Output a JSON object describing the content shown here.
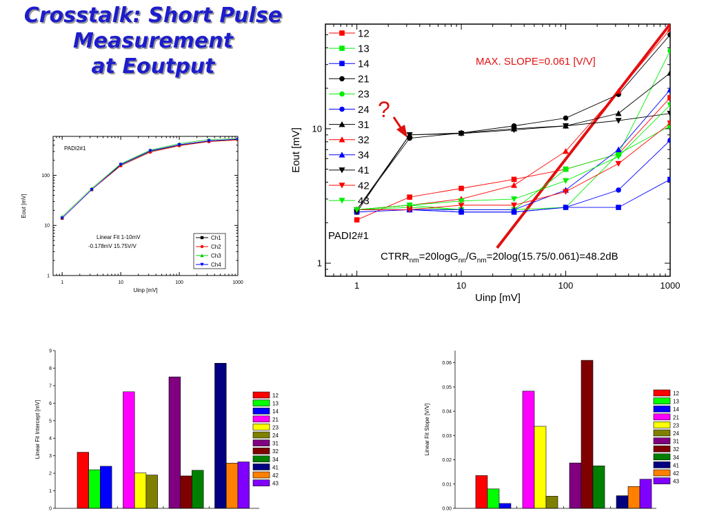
{
  "slide": {
    "title_lines": [
      "Crosstalk: Short Pulse",
      "Measurement",
      "at Eoutput"
    ]
  },
  "chart_data": [
    {
      "type": "line",
      "xscale": "log",
      "yscale": "log",
      "xlim": [
        0.7,
        1000
      ],
      "ylim": [
        1,
        600
      ],
      "xticks": [
        1,
        10,
        100,
        1000
      ],
      "xtick_labels": [
        "1",
        "10",
        "100",
        "1000"
      ],
      "yticks": [
        1,
        10,
        100
      ],
      "ytick_labels": [
        "1",
        "10",
        "100"
      ],
      "xlabel": "Uinp [mV]",
      "ylabel": "Eout [mV]",
      "annotations": [
        "PADI2#1",
        "Linear Fit 1-10mV",
        "-0.178mV  15.75V/V"
      ],
      "legend_position": "bottom-right",
      "x": [
        1,
        3.2,
        10,
        32,
        100,
        320,
        1000
      ],
      "series": [
        {
          "name": "Ch1",
          "color": "#000000",
          "marker": "square",
          "values": [
            14,
            52,
            160,
            300,
            400,
            480,
            520
          ]
        },
        {
          "name": "Ch2",
          "color": "#ff0000",
          "marker": "circle",
          "values": [
            14,
            52,
            155,
            290,
            390,
            470,
            510
          ]
        },
        {
          "name": "Ch3",
          "color": "#00cc00",
          "marker": "triangle-up",
          "values": [
            15,
            55,
            170,
            320,
            430,
            520,
            540
          ]
        },
        {
          "name": "Ch4",
          "color": "#0000ff",
          "marker": "triangle-down",
          "values": [
            14,
            52,
            165,
            310,
            410,
            490,
            530
          ]
        }
      ]
    },
    {
      "type": "line",
      "xscale": "log",
      "yscale": "log",
      "xlim": [
        0.5,
        1000
      ],
      "ylim": [
        0.8,
        60
      ],
      "xticks": [
        1,
        10,
        100,
        1000
      ],
      "xtick_labels": [
        "1",
        "10",
        "100",
        "1000"
      ],
      "yticks": [
        1,
        10
      ],
      "ytick_labels": [
        "1",
        "10"
      ],
      "xlabel": "Uinp [mV]",
      "ylabel": "Eout [mV]",
      "annotations": {
        "padi": "PADI2#1",
        "slope_label": "MAX. SLOPE=0.061 [V/V]",
        "question": "?",
        "ctrr": {
          "a": "CTRR",
          "b": "nm",
          "c": "=20logG",
          "d": "nn",
          "e": "/G",
          "f": "nm",
          "g": "=20log(15.75/0.061)=48.2dB"
        }
      },
      "max_slope_line": {
        "color": "#e01010",
        "x": [
          22,
          1000
        ],
        "y": [
          1.3,
          60
        ]
      },
      "legend_position": "top-left",
      "x": [
        1,
        3.2,
        10,
        32,
        100,
        320,
        1000
      ],
      "series": [
        {
          "name": "12",
          "color": "#ff0000",
          "marker": "square",
          "values": [
            2.1,
            3.1,
            3.6,
            4.2,
            5.0,
            6.5,
            17
          ]
        },
        {
          "name": "13",
          "color": "#00ee00",
          "marker": "square",
          "values": [
            2.5,
            2.6,
            2.5,
            2.5,
            5.0,
            6.5,
            10.5
          ]
        },
        {
          "name": "14",
          "color": "#0000ff",
          "marker": "square",
          "values": [
            2.4,
            2.5,
            2.4,
            2.4,
            2.6,
            2.6,
            4.2
          ]
        },
        {
          "name": "21",
          "color": "#000000",
          "marker": "circle",
          "values": [
            2.5,
            8.5,
            9.3,
            10.5,
            12,
            18,
            50
          ]
        },
        {
          "name": "23",
          "color": "#00ee00",
          "marker": "circle",
          "values": [
            2.5,
            2.7,
            2.5,
            2.5,
            2.6,
            6.5,
            38
          ]
        },
        {
          "name": "24",
          "color": "#0000ff",
          "marker": "circle",
          "values": [
            2.5,
            2.5,
            2.4,
            2.4,
            2.6,
            3.5,
            8.2
          ]
        },
        {
          "name": "31",
          "color": "#000000",
          "marker": "triangle-up",
          "values": [
            2.5,
            9.0,
            9.3,
            10.0,
            10.5,
            13,
            26
          ]
        },
        {
          "name": "32",
          "color": "#ff0000",
          "marker": "triangle-up",
          "values": [
            2.5,
            2.7,
            3.0,
            3.8,
            6.8,
            19,
            55
          ]
        },
        {
          "name": "34",
          "color": "#0000ff",
          "marker": "triangle-up",
          "values": [
            2.5,
            2.5,
            2.5,
            2.5,
            3.5,
            7.0,
            19.5
          ]
        },
        {
          "name": "41",
          "color": "#000000",
          "marker": "triangle-down",
          "values": [
            2.4,
            9.0,
            9.2,
            9.8,
            10.5,
            11.5,
            13
          ]
        },
        {
          "name": "42",
          "color": "#ff0000",
          "marker": "triangle-down",
          "values": [
            2.5,
            2.5,
            2.7,
            2.7,
            3.4,
            5.5,
            11
          ]
        },
        {
          "name": "43",
          "color": "#00ee00",
          "marker": "triangle-down",
          "values": [
            2.5,
            2.7,
            2.9,
            3.0,
            4.1,
            6.2,
            15
          ]
        }
      ]
    },
    {
      "type": "bar",
      "ylabel": "Linear Fit Intercept [mV]",
      "ylim": [
        0,
        9
      ],
      "yticks": [
        0,
        1,
        2,
        3,
        4,
        5,
        6,
        7,
        8,
        9
      ],
      "ytick_labels": [
        "0",
        "1",
        "2",
        "3",
        "4",
        "5",
        "6",
        "7",
        "8",
        "9"
      ],
      "grid": false,
      "legend_position": "right",
      "categories": [
        "12",
        "13",
        "14",
        "21",
        "23",
        "24",
        "31",
        "32",
        "34",
        "41",
        "42",
        "43"
      ],
      "colors": [
        "#ff0000",
        "#00ff00",
        "#0000ff",
        "#ff00ff",
        "#ffff00",
        "#808000",
        "#800080",
        "#800000",
        "#008000",
        "#000080",
        "#ff8000",
        "#8000ff"
      ],
      "values": [
        3.2,
        2.2,
        2.4,
        6.65,
        2.02,
        1.9,
        7.5,
        1.85,
        2.17,
        8.28,
        2.58,
        2.65
      ]
    },
    {
      "type": "bar",
      "ylabel": "Linear Fit Slope [V/V]",
      "ylim": [
        0,
        0.065
      ],
      "yticks": [
        0,
        0.01,
        0.02,
        0.03,
        0.04,
        0.05,
        0.06
      ],
      "ytick_labels": [
        "0.00",
        "0.01",
        "0.02",
        "0.03",
        "0.04",
        "0.05",
        "0.06"
      ],
      "grid": false,
      "legend_position": "right",
      "categories": [
        "12",
        "13",
        "14",
        "21",
        "23",
        "24",
        "31",
        "32",
        "34",
        "41",
        "42",
        "43"
      ],
      "colors": [
        "#ff0000",
        "#00ff00",
        "#0000ff",
        "#ff00ff",
        "#ffff00",
        "#808000",
        "#800080",
        "#800000",
        "#008000",
        "#000080",
        "#ff8000",
        "#8000ff"
      ],
      "values": [
        0.0135,
        0.008,
        0.002,
        0.0483,
        0.0338,
        0.005,
        0.0187,
        0.061,
        0.0175,
        0.0052,
        0.009,
        0.012
      ]
    }
  ]
}
